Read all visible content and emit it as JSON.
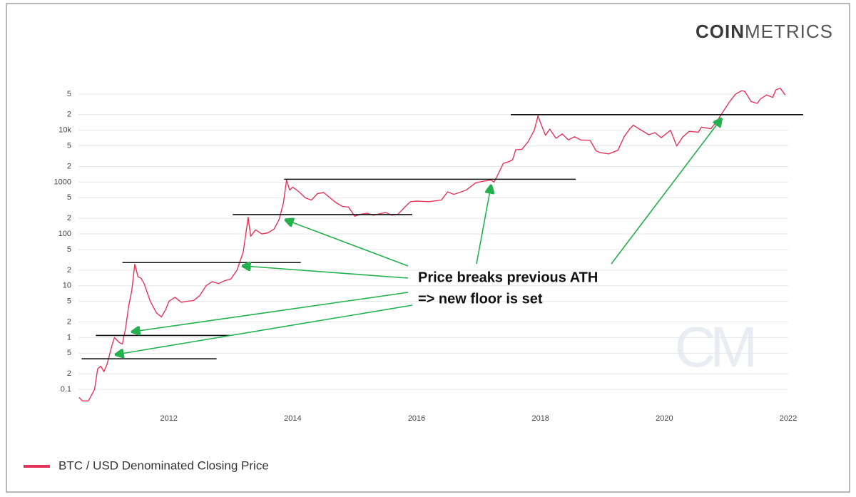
{
  "brand": [
    "COIN",
    "METRICS"
  ],
  "watermark": "CM",
  "chart_data": {
    "type": "line",
    "log_y": true,
    "grid": true,
    "legend": "bottom-left",
    "xlim": [
      2010.54,
      2022
    ],
    "xticks": [
      2012,
      2014,
      2016,
      2018,
      2020,
      2022
    ],
    "ylim": [
      0.05,
      100000
    ],
    "yticks": [
      0.1,
      {
        "value": 0.2,
        "label": "2"
      },
      {
        "value": 0.5,
        "label": "5"
      },
      1,
      {
        "value": 2,
        "label": "2"
      },
      {
        "value": 5,
        "label": "5"
      },
      10,
      {
        "value": 20,
        "label": "2"
      },
      {
        "value": 50,
        "label": "5"
      },
      100,
      {
        "value": 200,
        "label": "2"
      },
      {
        "value": 500,
        "label": "5"
      },
      1000,
      {
        "value": 2000,
        "label": "2"
      },
      {
        "value": 5000,
        "label": "5"
      },
      {
        "value": 10000,
        "label": "10k"
      },
      {
        "value": 20000,
        "label": "2"
      },
      {
        "value": 50000,
        "label": "5"
      }
    ],
    "series": [
      {
        "name": "BTC / USD Denominated Closing Price",
        "color": "#e5345a",
        "x": [
          2010.55,
          2010.6,
          2010.7,
          2010.8,
          2010.85,
          2010.9,
          2010.95,
          2011.0,
          2011.08,
          2011.12,
          2011.2,
          2011.25,
          2011.3,
          2011.35,
          2011.4,
          2011.45,
          2011.5,
          2011.55,
          2011.6,
          2011.7,
          2011.8,
          2011.88,
          2011.95,
          2012.0,
          2012.1,
          2012.2,
          2012.3,
          2012.4,
          2012.5,
          2012.6,
          2012.7,
          2012.8,
          2012.9,
          2013.0,
          2013.1,
          2013.2,
          2013.28,
          2013.32,
          2013.4,
          2013.5,
          2013.6,
          2013.7,
          2013.78,
          2013.85,
          2013.9,
          2013.95,
          2014.0,
          2014.1,
          2014.2,
          2014.3,
          2014.4,
          2014.5,
          2014.6,
          2014.7,
          2014.8,
          2014.9,
          2015.0,
          2015.1,
          2015.2,
          2015.3,
          2015.5,
          2015.6,
          2015.7,
          2015.8,
          2015.9,
          2016.0,
          2016.2,
          2016.4,
          2016.5,
          2016.6,
          2016.8,
          2016.95,
          2017.0,
          2017.1,
          2017.2,
          2017.25,
          2017.3,
          2017.4,
          2017.5,
          2017.55,
          2017.6,
          2017.7,
          2017.8,
          2017.9,
          2017.96,
          2018.0,
          2018.08,
          2018.15,
          2018.25,
          2018.35,
          2018.45,
          2018.55,
          2018.65,
          2018.8,
          2018.9,
          2018.97,
          2019.1,
          2019.25,
          2019.35,
          2019.45,
          2019.5,
          2019.6,
          2019.75,
          2019.85,
          2019.95,
          2020.1,
          2020.2,
          2020.3,
          2020.4,
          2020.55,
          2020.6,
          2020.75,
          2020.85,
          2020.95,
          2021.05,
          2021.15,
          2021.25,
          2021.3,
          2021.4,
          2021.5,
          2021.55,
          2021.65,
          2021.75,
          2021.8,
          2021.87,
          2021.95
        ],
        "values": [
          0.07,
          0.06,
          0.06,
          0.1,
          0.25,
          0.28,
          0.22,
          0.3,
          0.7,
          1.0,
          0.8,
          0.75,
          1.5,
          4,
          8,
          26,
          15,
          14,
          11,
          5,
          3,
          2.5,
          3.5,
          5,
          6,
          4.8,
          5,
          5.2,
          6.5,
          10,
          12,
          11,
          12.5,
          13.5,
          20,
          45,
          210,
          90,
          120,
          100,
          105,
          125,
          190,
          400,
          1100,
          700,
          800,
          650,
          500,
          450,
          600,
          630,
          500,
          400,
          340,
          330,
          220,
          240,
          250,
          230,
          260,
          230,
          240,
          320,
          420,
          430,
          420,
          450,
          650,
          580,
          700,
          960,
          1000,
          1050,
          1100,
          1000,
          1300,
          2300,
          2500,
          2700,
          4200,
          4300,
          6000,
          10000,
          19000,
          14000,
          8000,
          10500,
          7000,
          8500,
          6500,
          7500,
          6500,
          6400,
          4000,
          3700,
          3500,
          4100,
          7500,
          11000,
          12500,
          10500,
          8200,
          9000,
          7200,
          10000,
          5000,
          7500,
          9500,
          9200,
          11500,
          10700,
          15000,
          23000,
          35000,
          50000,
          58000,
          56000,
          36000,
          33000,
          40000,
          48000,
          43000,
          60000,
          65000,
          48000
        ]
      }
    ],
    "reference_lines": [
      {
        "value": 0.39,
        "x": [
          2010.59,
          2012.77
        ]
      },
      {
        "value": 1.1,
        "x": [
          2010.82,
          2012.99
        ]
      },
      {
        "value": 28,
        "x": [
          2011.25,
          2014.13
        ]
      },
      {
        "value": 236,
        "x": [
          2013.03,
          2015.93
        ]
      },
      {
        "value": 1135,
        "x": [
          2013.86,
          2018.57
        ]
      },
      {
        "value": 20000,
        "x": [
          2017.52,
          2022.24
        ]
      }
    ],
    "annotation": [
      "Price breaks previous ATH",
      "=> new floor is set"
    ]
  }
}
